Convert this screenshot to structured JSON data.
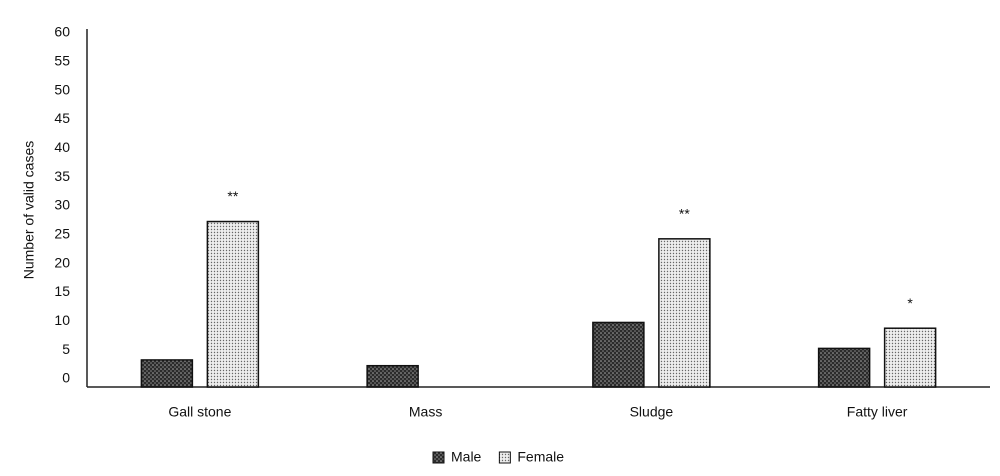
{
  "chart_data": {
    "type": "bar",
    "y_label": "Number of valid cases",
    "categories": [
      "Gall stone",
      "Mass",
      "Sludge",
      "Fatty liver"
    ],
    "series": [
      {
        "name": "Male",
        "color": "#333333",
        "values": [
          4,
          3,
          10.5,
          6
        ]
      },
      {
        "name": "Female",
        "color": "#e6e6e6",
        "values": [
          28,
          0,
          25,
          9.5
        ]
      }
    ],
    "annotations": [
      "**",
      null,
      "**",
      "*"
    ],
    "ylim": [
      0,
      60
    ],
    "yticks": [
      0,
      5,
      10,
      15,
      20,
      25,
      30,
      35,
      40,
      45,
      50,
      55,
      60
    ],
    "grid": false,
    "legend": "bottom"
  }
}
